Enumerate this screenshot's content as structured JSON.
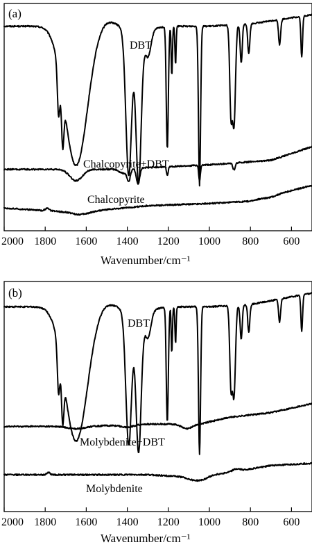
{
  "chart_data": [
    {
      "type": "line",
      "panel_label": "(a)",
      "xlabel": "Wavenumber/cm⁻¹",
      "xlim": [
        2000,
        500
      ],
      "x_ticks": [
        2000,
        1800,
        1600,
        1400,
        1200,
        1000,
        800,
        600
      ],
      "x_tick_labels": [
        "2000",
        "1800",
        "1600",
        "1400",
        "1200",
        "1000",
        "800",
        "600"
      ],
      "y_ticks_shown": false,
      "series": [
        {
          "name": "DBT",
          "baseline": 0.9,
          "trend": [
            [
              2000,
              0.0
            ],
            [
              1800,
              0.0
            ],
            [
              1600,
              -0.02
            ],
            [
              1400,
              -0.03
            ],
            [
              1200,
              0.0
            ],
            [
              1000,
              0.0
            ],
            [
              800,
              0.01
            ],
            [
              500,
              0.05
            ]
          ],
          "bands": [
            [
              1735,
              -0.21,
              6
            ],
            [
              1715,
              -0.23,
              6
            ],
            [
              1650,
              -0.6,
              55
            ],
            [
              1500,
              0.05,
              60
            ],
            [
              1393,
              -0.64,
              14
            ],
            [
              1345,
              -0.67,
              13
            ],
            [
              1300,
              -0.12,
              15
            ],
            [
              1205,
              -0.54,
              5
            ],
            [
              1183,
              -0.22,
              3
            ],
            [
              1165,
              -0.17,
              3
            ],
            [
              1048,
              -0.7,
              5
            ],
            [
              895,
              -0.38,
              6
            ],
            [
              880,
              -0.44,
              7
            ],
            [
              845,
              -0.17,
              5
            ],
            [
              808,
              -0.13,
              5
            ],
            [
              658,
              -0.11,
              5
            ],
            [
              550,
              -0.18,
              4
            ]
          ]
        },
        {
          "name": "Chalcopyrite+DBT",
          "baseline": 0.27,
          "trend": [
            [
              2000,
              0.0
            ],
            [
              1500,
              0.0
            ],
            [
              1000,
              0.02
            ],
            [
              700,
              0.04
            ],
            [
              500,
              0.1
            ]
          ],
          "bands": [
            [
              1650,
              -0.05,
              30
            ],
            [
              1420,
              -0.02,
              20
            ],
            [
              1393,
              -0.05,
              8
            ],
            [
              1348,
              -0.07,
              8
            ],
            [
              1205,
              -0.04,
              4
            ],
            [
              1048,
              -0.07,
              4
            ],
            [
              880,
              -0.03,
              6
            ]
          ]
        },
        {
          "name": "Chalcopyrite",
          "baseline": 0.1,
          "trend": [
            [
              2000,
              0.0
            ],
            [
              1650,
              -0.02
            ],
            [
              1300,
              0.01
            ],
            [
              1000,
              0.02
            ],
            [
              800,
              0.03
            ],
            [
              500,
              0.1
            ]
          ],
          "bands": [
            [
              1790,
              0.01,
              10
            ],
            [
              1620,
              -0.01,
              40
            ],
            [
              700,
              -0.005,
              30
            ]
          ]
        }
      ]
    },
    {
      "type": "line",
      "panel_label": "(b)",
      "xlabel": "Wavenumber/cm⁻¹",
      "xlim": [
        2000,
        500
      ],
      "x_ticks": [
        2000,
        1800,
        1600,
        1400,
        1200,
        1000,
        800,
        600
      ],
      "x_tick_labels": [
        "2000",
        "1800",
        "1600",
        "1400",
        "1200",
        "1000",
        "800",
        "600"
      ],
      "y_ticks_shown": false,
      "series": [
        {
          "name": "DBT",
          "baseline": 0.89,
          "trend": [
            [
              2000,
              0.0
            ],
            [
              1800,
              0.0
            ],
            [
              1600,
              -0.02
            ],
            [
              1400,
              -0.03
            ],
            [
              1200,
              0.0
            ],
            [
              1000,
              0.0
            ],
            [
              800,
              0.01
            ],
            [
              500,
              0.06
            ]
          ],
          "bands": [
            [
              1735,
              -0.2,
              6
            ],
            [
              1715,
              -0.22,
              6
            ],
            [
              1650,
              -0.57,
              55
            ],
            [
              1500,
              0.04,
              60
            ],
            [
              1393,
              -0.58,
              14
            ],
            [
              1345,
              -0.61,
              13
            ],
            [
              1300,
              -0.12,
              15
            ],
            [
              1205,
              -0.5,
              5
            ],
            [
              1183,
              -0.2,
              3
            ],
            [
              1165,
              -0.16,
              3
            ],
            [
              1048,
              -0.64,
              5
            ],
            [
              895,
              -0.34,
              6
            ],
            [
              880,
              -0.39,
              7
            ],
            [
              845,
              -0.15,
              5
            ],
            [
              808,
              -0.12,
              5
            ],
            [
              658,
              -0.1,
              5
            ],
            [
              550,
              -0.16,
              4
            ]
          ]
        },
        {
          "name": "Molybdenite+DBT",
          "baseline": 0.37,
          "trend": [
            [
              2000,
              0.0
            ],
            [
              1600,
              0.0
            ],
            [
              1300,
              0.01
            ],
            [
              1050,
              0.01
            ],
            [
              900,
              0.04
            ],
            [
              700,
              0.06
            ],
            [
              500,
              0.1
            ]
          ],
          "bands": [
            [
              1650,
              -0.01,
              40
            ],
            [
              1400,
              -0.01,
              30
            ],
            [
              1110,
              -0.02,
              25
            ]
          ]
        },
        {
          "name": "Molybdenite",
          "baseline": 0.16,
          "trend": [
            [
              2000,
              0.0
            ],
            [
              1600,
              0.0
            ],
            [
              1300,
              0.0
            ],
            [
              1100,
              -0.01
            ],
            [
              900,
              0.01
            ],
            [
              700,
              0.04
            ],
            [
              500,
              0.05
            ]
          ],
          "bands": [
            [
              1785,
              0.01,
              8
            ],
            [
              1050,
              -0.02,
              40
            ],
            [
              870,
              0.01,
              20
            ]
          ]
        }
      ]
    }
  ]
}
